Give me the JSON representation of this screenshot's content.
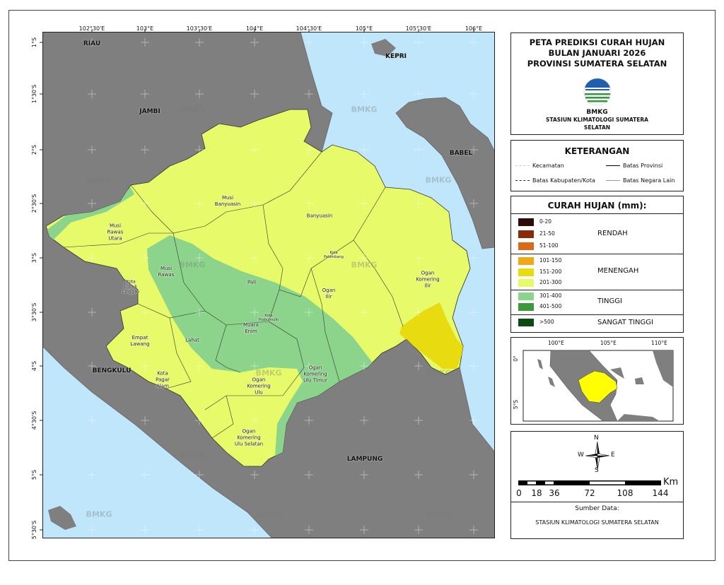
{
  "title": {
    "lines": [
      "PETA PREDIKSI CURAH HUJAN",
      "BULAN JANUARI 2026",
      "PROVINSI SUMATERA SELATAN"
    ],
    "logo_text": "BMKG",
    "station": "STASIUN KLIMATOLOGI SUMATERA SELATAN"
  },
  "keterangan": {
    "heading": "KETERANGAN",
    "items": [
      "Kecamatan",
      "Batas Provinsi",
      "Batas Kabupaten/Kota",
      "Batas Negara Lain"
    ]
  },
  "curah_hujan": {
    "heading": "CURAH HUJAN (mm):",
    "classes": [
      {
        "label": "RENDAH",
        "ranges": [
          {
            "range": "0-20",
            "color": "#2e0a0a"
          },
          {
            "range": "21-50",
            "color": "#8a2a0a"
          },
          {
            "range": "51-100",
            "color": "#db6a18"
          }
        ]
      },
      {
        "label": "MENENGAH",
        "ranges": [
          {
            "range": "101-150",
            "color": "#f0a818"
          },
          {
            "range": "151-200",
            "color": "#e8dc10"
          },
          {
            "range": "201-300",
            "color": "#e6fa6a"
          }
        ]
      },
      {
        "label": "TINGGI",
        "ranges": [
          {
            "range": "301-400",
            "color": "#8cd48c"
          },
          {
            "range": "401-500",
            "color": "#3c9a3c"
          }
        ]
      },
      {
        "label": "SANGAT TINGGI",
        "ranges": [
          {
            "range": ">500",
            "color": "#0c4a12"
          }
        ]
      }
    ]
  },
  "map": {
    "lon_ticks": [
      "102°30'E",
      "103°E",
      "103°30'E",
      "104°E",
      "104°30'E",
      "105°E",
      "105°30'E",
      "106°E"
    ],
    "lat_ticks": [
      "1°S",
      "1°30'S",
      "2°S",
      "2°30'S",
      "3°S",
      "3°30'S",
      "4°S",
      "4°30'S",
      "5°S",
      "5°30'S"
    ],
    "provinces": [
      "RIAU",
      "JAMBI",
      "KEPRI",
      "BABEL",
      "BENGKULU",
      "LAMPUNG"
    ],
    "districts": [
      "Musi\nBanyuasin",
      "Musi\nRawas\nUtara",
      "Banyuasin",
      "Kota\nPalembang",
      "Musi\nRawas",
      "Kota\nLubuk\nLinggau",
      "Pali",
      "Ogan\nIlir",
      "Ogan\nKomering\nIlir",
      "Kota\nPrabumulih",
      "Muara\nEnim",
      "Empat\nLawang",
      "Lahat",
      "Kota\nPagar\nAlam",
      "Ogan\nKomering\nUlu Timur",
      "Ogan\nKomering\nUlu",
      "Ogan\nKomering\nUlu Selatan"
    ],
    "watermark": "BMKG",
    "colors": {
      "sea": "#bfe6fa",
      "land": "#7f7f7f",
      "province": "#e6fa6a",
      "tinggi": "#8cd48c",
      "menengah_151_200": "#e8dc10"
    }
  },
  "inset": {
    "lon_ticks": [
      "100°E",
      "105°E",
      "110°E"
    ],
    "lat_ticks": [
      "0°",
      "5°S"
    ],
    "highlight_color": "#ffff00"
  },
  "north_arrow": {
    "n": "N",
    "s": "S",
    "e": "E",
    "w": "W"
  },
  "scale_bar": {
    "unit": "Km",
    "labels": [
      "0",
      "18",
      "36",
      "72",
      "108",
      "144"
    ]
  },
  "source": {
    "heading": "Sumber Data:",
    "text": "STASIUN KLIMATOLOGI SUMATERA SELATAN"
  }
}
